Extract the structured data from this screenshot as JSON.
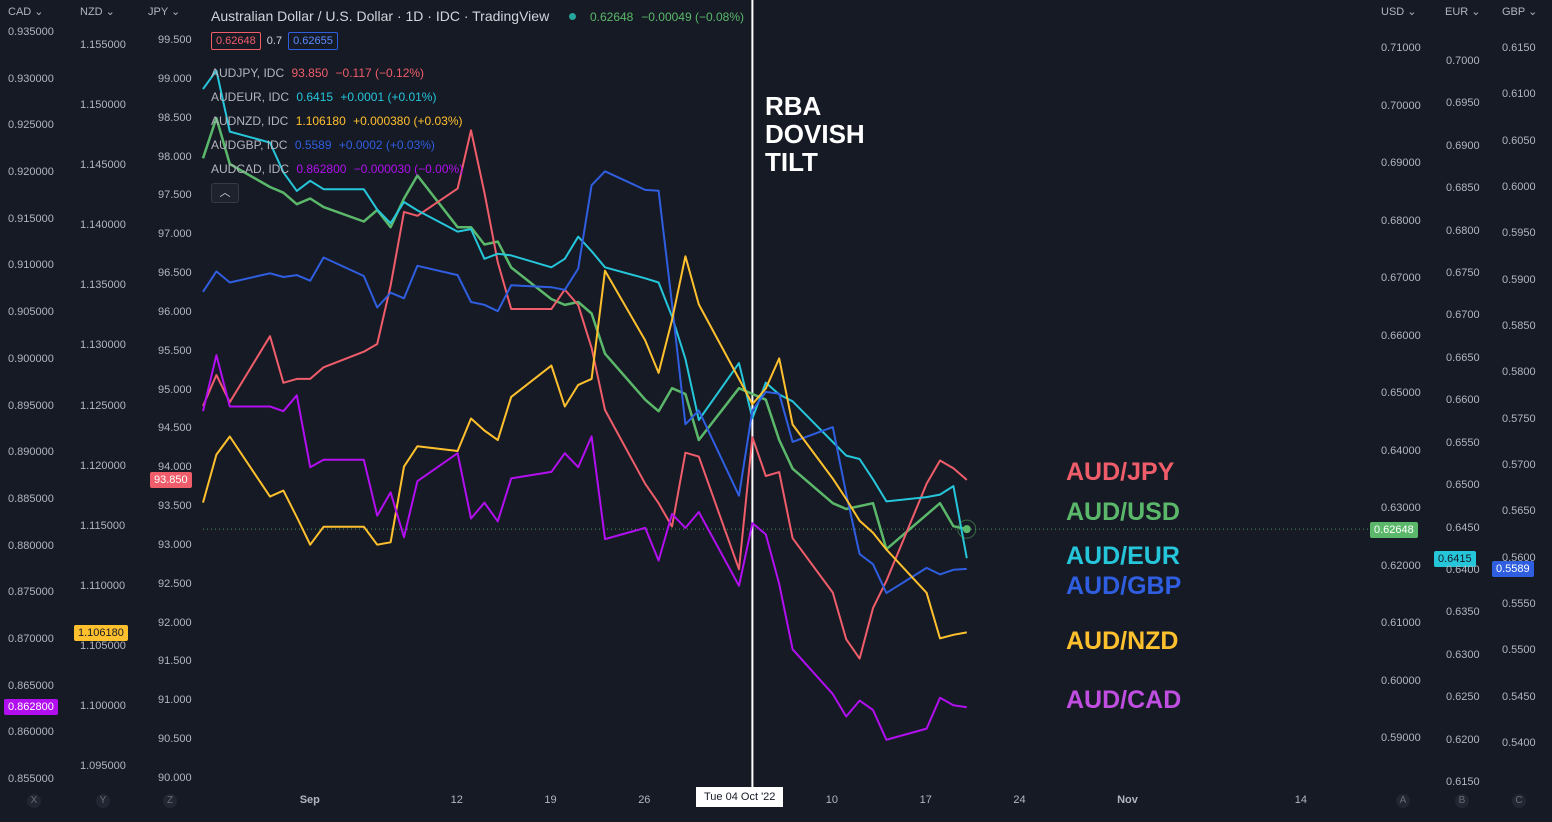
{
  "header": {
    "title": "Australian Dollar / U.S. Dollar · 1D · IDC · TradingView",
    "last": "0.62648",
    "change": "−0.00049 (−0.08%)",
    "bid": "0.62648",
    "spread": "0.7",
    "ask": "0.62655"
  },
  "scales": {
    "left_headers": [
      "CAD",
      "NZD",
      "JPY"
    ],
    "right_headers": [
      "USD",
      "EUR",
      "GBP"
    ],
    "cad_ticks": [
      "0.935000",
      "0.930000",
      "0.925000",
      "0.920000",
      "0.915000",
      "0.910000",
      "0.905000",
      "0.900000",
      "0.895000",
      "0.890000",
      "0.885000",
      "0.880000",
      "0.875000",
      "0.870000",
      "0.865000",
      "0.860000",
      "0.855000"
    ],
    "nzd_ticks": [
      "1.155000",
      "1.150000",
      "1.145000",
      "1.140000",
      "1.135000",
      "1.130000",
      "1.125000",
      "1.120000",
      "1.115000",
      "1.110000",
      "1.105000",
      "1.100000",
      "1.095000"
    ],
    "jpy_ticks": [
      "99.500",
      "99.000",
      "98.500",
      "98.000",
      "97.500",
      "97.000",
      "96.500",
      "96.000",
      "95.500",
      "95.000",
      "94.500",
      "94.000",
      "93.500",
      "93.000",
      "92.500",
      "92.000",
      "91.500",
      "91.000",
      "90.500",
      "90.000"
    ],
    "usd_ticks": [
      "0.71000",
      "0.70000",
      "0.69000",
      "0.68000",
      "0.67000",
      "0.66000",
      "0.65000",
      "0.64000",
      "0.63000",
      "0.62000",
      "0.61000",
      "0.60000",
      "0.59000"
    ],
    "eur_ticks": [
      "0.7000",
      "0.6950",
      "0.6900",
      "0.6850",
      "0.6800",
      "0.6750",
      "0.6700",
      "0.6650",
      "0.6600",
      "0.6550",
      "0.6500",
      "0.6450",
      "0.6400",
      "0.6350",
      "0.6300",
      "0.6250",
      "0.6200",
      "0.6150"
    ],
    "gbp_ticks": [
      "0.6150",
      "0.6100",
      "0.6050",
      "0.6000",
      "0.5950",
      "0.5900",
      "0.5850",
      "0.5800",
      "0.5750",
      "0.5700",
      "0.5650",
      "0.5600",
      "0.5550",
      "0.5500",
      "0.5450",
      "0.5400"
    ],
    "x_ticks": [
      "Sep",
      "12",
      "19",
      "26",
      "10",
      "17",
      "24",
      "Nov",
      "14"
    ],
    "axis_buttons": [
      "X",
      "Y",
      "Z",
      "A",
      "B",
      "C"
    ]
  },
  "legend": [
    {
      "name": "AUDJPY, IDC",
      "value": "93.850",
      "change": "−0.117 (−0.12%)",
      "color": "#f05d6a"
    },
    {
      "name": "AUDEUR, IDC",
      "value": "0.6415",
      "change": "+0.0001 (+0.01%)",
      "color": "#26c6da"
    },
    {
      "name": "AUDNZD, IDC",
      "value": "1.106180",
      "change": "+0.000380 (+0.03%)",
      "color": "#ffc02e"
    },
    {
      "name": "AUDGBP, IDC",
      "value": "0.5589",
      "change": "+0.0002 (+0.03%)",
      "color": "#2f5ee0"
    },
    {
      "name": "AUDCAD, IDC",
      "value": "0.862800",
      "change": "−0.000030 (−0.00%)",
      "color": "#b20ff0"
    }
  ],
  "flags": {
    "jpy": "93.850",
    "nzd": "1.106180",
    "cad": "0.862800",
    "usd": "0.62648",
    "eur": "0.6415",
    "gbp": "0.5589"
  },
  "annotation": {
    "line1": "RBA",
    "line2": "DOVISH",
    "line3": "TILT",
    "date": "Tue 04 Oct '22"
  },
  "pair_labels": [
    "AUD/JPY",
    "AUD/USD",
    "AUD/EUR",
    "AUD/GBP",
    "AUD/NZD",
    "AUD/CAD"
  ],
  "chart_data": {
    "type": "line",
    "x": [
      "2022-08-24",
      "2022-08-25",
      "2022-08-26",
      "2022-08-29",
      "2022-08-30",
      "2022-08-31",
      "2022-09-01",
      "2022-09-02",
      "2022-09-05",
      "2022-09-06",
      "2022-09-07",
      "2022-09-08",
      "2022-09-09",
      "2022-09-12",
      "2022-09-13",
      "2022-09-14",
      "2022-09-15",
      "2022-09-16",
      "2022-09-19",
      "2022-09-20",
      "2022-09-21",
      "2022-09-22",
      "2022-09-23",
      "2022-09-26",
      "2022-09-27",
      "2022-09-28",
      "2022-09-29",
      "2022-09-30",
      "2022-10-03",
      "2022-10-04",
      "2022-10-05",
      "2022-10-06",
      "2022-10-07",
      "2022-10-10",
      "2022-10-11",
      "2022-10-12",
      "2022-10-13",
      "2022-10-14",
      "2022-10-17",
      "2022-10-18",
      "2022-10-19",
      "2022-10-20"
    ],
    "series": [
      {
        "name": "AUD/USD",
        "color": "#5bb86a",
        "axis": "USD",
        "values": [
          0.691,
          0.698,
          0.69,
          0.686,
          0.685,
          0.683,
          0.684,
          0.6825,
          0.68,
          0.682,
          0.679,
          0.684,
          0.688,
          0.679,
          0.679,
          0.676,
          0.6765,
          0.672,
          0.6665,
          0.6655,
          0.666,
          0.664,
          0.657,
          0.649,
          0.647,
          0.651,
          0.65,
          0.642,
          0.651,
          0.65,
          0.649,
          0.642,
          0.637,
          0.631,
          0.63,
          0.6305,
          0.631,
          0.623,
          0.629,
          0.631,
          0.627,
          0.6265
        ]
      },
      {
        "name": "AUD/JPY",
        "color": "#f05d6a",
        "axis": "JPY",
        "values": [
          94.8,
          95.2,
          94.85,
          95.7,
          95.1,
          95.15,
          95.15,
          95.3,
          95.5,
          95.6,
          96.35,
          97.3,
          97.25,
          97.6,
          98.35,
          97.55,
          96.65,
          96.05,
          96.05,
          96.3,
          96.1,
          95.55,
          94.75,
          93.8,
          93.55,
          93.25,
          94.2,
          94.15,
          92.7,
          94.4,
          93.9,
          93.95,
          93.1,
          92.4,
          91.8,
          91.55,
          92.2,
          92.55,
          93.8,
          94.1,
          94.0,
          93.85
        ]
      },
      {
        "name": "AUD/EUR",
        "color": "#26c6da",
        "axis": "EUR",
        "values": [
          0.6968,
          0.699,
          0.6918,
          0.6905,
          0.687,
          0.6848,
          0.686,
          0.685,
          0.685,
          0.6826,
          0.681,
          0.6835,
          0.6825,
          0.68,
          0.6803,
          0.6768,
          0.6774,
          0.6772,
          0.6758,
          0.6768,
          0.6794,
          0.6777,
          0.6758,
          0.6745,
          0.674,
          0.67,
          0.665,
          0.6578,
          0.6645,
          0.658,
          0.6622,
          0.6608,
          0.66,
          0.6552,
          0.6536,
          0.6532,
          0.6508,
          0.6482,
          0.6487,
          0.649,
          0.65,
          0.6415
        ]
      },
      {
        "name": "AUD/GBP",
        "color": "#2f5ee0",
        "axis": "GBP",
        "values": [
          0.5888,
          0.591,
          0.5898,
          0.5908,
          0.5904,
          0.5906,
          0.59,
          0.5925,
          0.5905,
          0.5871,
          0.5887,
          0.5881,
          0.5916,
          0.5906,
          0.5877,
          0.5874,
          0.5867,
          0.5895,
          0.5893,
          0.589,
          0.5913,
          0.6003,
          0.6018,
          0.5998,
          0.5997,
          0.5875,
          0.5745,
          0.576,
          0.5668,
          0.576,
          0.578,
          0.5778,
          0.5726,
          0.5742,
          0.567,
          0.5605,
          0.5594,
          0.5563,
          0.559,
          0.5583,
          0.5588,
          0.5589
        ]
      },
      {
        "name": "AUD/NZD",
        "color": "#ffc02e",
        "axis": "NZD",
        "values": [
          1.117,
          1.121,
          1.1225,
          1.1175,
          1.118,
          1.1158,
          1.1135,
          1.115,
          1.115,
          1.1135,
          1.1137,
          1.12,
          1.1217,
          1.1213,
          1.124,
          1.123,
          1.1222,
          1.1258,
          1.1284,
          1.125,
          1.1268,
          1.1273,
          1.1363,
          1.1305,
          1.1278,
          1.1322,
          1.1375,
          1.1335,
          1.1273,
          1.1252,
          1.1265,
          1.129,
          1.1235,
          1.119,
          1.1173,
          1.1155,
          1.1145,
          1.1131,
          1.1095,
          1.1057,
          1.106,
          1.1062
        ]
      },
      {
        "name": "AUD/CAD",
        "color": "#b20ff0",
        "axis": "CAD",
        "values": [
          0.8945,
          0.9005,
          0.895,
          0.895,
          0.8945,
          0.8962,
          0.8885,
          0.8893,
          0.8893,
          0.8833,
          0.8858,
          0.881,
          0.887,
          0.89,
          0.883,
          0.8847,
          0.8827,
          0.8873,
          0.888,
          0.89,
          0.8885,
          0.8918,
          0.8808,
          0.882,
          0.8785,
          0.8835,
          0.882,
          0.8837,
          0.8758,
          0.8825,
          0.8813,
          0.876,
          0.869,
          0.8642,
          0.8618,
          0.8635,
          0.8625,
          0.8593,
          0.8605,
          0.8638,
          0.863,
          0.8628
        ]
      }
    ]
  }
}
